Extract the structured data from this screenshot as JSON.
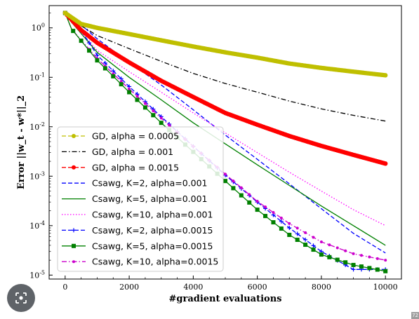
{
  "chart_data": {
    "type": "line",
    "title": "",
    "xlabel": "#gradient evaluations",
    "ylabel": "Error ||w_t - w*||_2",
    "xlim": [
      -500,
      10500
    ],
    "ylim_log10": [
      -5.08,
      0.45
    ],
    "yscale": "log",
    "x_ticks": [
      0,
      2000,
      4000,
      6000,
      8000,
      10000
    ],
    "x_tick_labels": [
      "0",
      "2000",
      "4000",
      "6000",
      "8000",
      "10000"
    ],
    "y_ticks": [
      1,
      0.1,
      0.01,
      0.001,
      0.0001,
      1e-05
    ],
    "y_tick_labels": [
      "10^0",
      "10^-1",
      "10^-2",
      "10^-3",
      "10^-4",
      "10^-5"
    ],
    "grid": false,
    "legend_position": "lower-left",
    "series": [
      {
        "name": "GD, alpha = 0.0005",
        "color": "#bfbf00",
        "style": "dashed",
        "marker": "circle-dense",
        "x": [
          0,
          500,
          1000,
          2000,
          3000,
          4000,
          5000,
          6000,
          7000,
          8000,
          9000,
          10000
        ],
        "y": [
          2.0,
          1.2,
          1.0,
          0.75,
          0.56,
          0.42,
          0.32,
          0.25,
          0.19,
          0.155,
          0.13,
          0.11
        ]
      },
      {
        "name": "GD, alpha = 0.001",
        "color": "#000000",
        "style": "dashdot",
        "marker": "none",
        "x": [
          0,
          500,
          1000,
          2000,
          3000,
          4000,
          5000,
          6000,
          7000,
          8000,
          9000,
          10000
        ],
        "y": [
          2.0,
          1.1,
          0.7,
          0.38,
          0.21,
          0.12,
          0.075,
          0.05,
          0.033,
          0.023,
          0.017,
          0.013
        ]
      },
      {
        "name": "GD, alpha = 0.0015",
        "color": "#ff0000",
        "style": "dashed",
        "marker": "circle-dense",
        "x": [
          0,
          500,
          1000,
          2000,
          3000,
          4000,
          5000,
          6000,
          7000,
          8000,
          9000,
          10000
        ],
        "y": [
          2.0,
          0.9,
          0.5,
          0.2,
          0.085,
          0.04,
          0.019,
          0.011,
          0.0065,
          0.0041,
          0.0027,
          0.0018
        ]
      },
      {
        "name": "Csawg, K=2, alpha=0.001",
        "color": "#0000ff",
        "style": "dashed",
        "marker": "none",
        "x": [
          0,
          300,
          1000,
          2000,
          3000,
          4000,
          5000,
          6000,
          7000,
          8000,
          9000,
          10000
        ],
        "y": [
          2.0,
          1.5,
          0.6,
          0.2,
          0.07,
          0.022,
          0.0068,
          0.0022,
          0.0007,
          0.00022,
          7e-05,
          2.8e-05
        ]
      },
      {
        "name": "Csawg, K=5, alpha=0.001",
        "color": "#008000",
        "style": "solid",
        "marker": "none",
        "x": [
          0,
          200,
          1000,
          2000,
          3000,
          4000,
          5000,
          6000,
          7000,
          8000,
          9000,
          10000
        ],
        "y": [
          2.0,
          1.3,
          0.32,
          0.1,
          0.035,
          0.012,
          0.0045,
          0.0017,
          0.00065,
          0.00025,
          0.0001,
          4e-05
        ]
      },
      {
        "name": "Csawg, K=10, alpha=0.001",
        "color": "#ff00ff",
        "style": "dotted",
        "marker": "none",
        "x": [
          0,
          200,
          1000,
          2000,
          3000,
          4000,
          5000,
          6000,
          7000,
          8000,
          9000,
          10000
        ],
        "y": [
          2.0,
          1.3,
          0.35,
          0.13,
          0.05,
          0.019,
          0.0075,
          0.003,
          0.0012,
          0.0005,
          0.00021,
          0.0001
        ]
      },
      {
        "name": "Csawg, K=2, alpha=0.0015",
        "color": "#0000ff",
        "style": "dashed",
        "marker": "plus",
        "x": [
          0,
          300,
          1000,
          2000,
          3000,
          4000,
          5000,
          6000,
          7000,
          8000,
          9000,
          10000
        ],
        "y": [
          2.0,
          1.4,
          0.28,
          0.065,
          0.016,
          0.004,
          0.00105,
          0.0003,
          9e-05,
          3e-05,
          1.3e-05,
          1.3e-05
        ]
      },
      {
        "name": "Csawg, K=5, alpha=0.0015",
        "color": "#008000",
        "style": "solid",
        "marker": "square",
        "x": [
          0,
          200,
          1000,
          2000,
          3000,
          4000,
          5000,
          6000,
          7000,
          8000,
          9000,
          10000
        ],
        "y": [
          2.0,
          0.95,
          0.22,
          0.05,
          0.012,
          0.0031,
          0.0008,
          0.00021,
          6.5e-05,
          2.6e-05,
          1.6e-05,
          1.2e-05
        ]
      },
      {
        "name": "Csawg, K=10, alpha=0.0015",
        "color": "#cc00cc",
        "style": "dashdot",
        "marker": "circle",
        "x": [
          0,
          200,
          1000,
          2000,
          3000,
          4000,
          5000,
          6000,
          7000,
          8000,
          9000,
          10000
        ],
        "y": [
          2.0,
          0.95,
          0.24,
          0.058,
          0.015,
          0.004,
          0.0011,
          0.00031,
          0.00011,
          4.7e-05,
          2.7e-05,
          2e-05
        ]
      }
    ]
  },
  "corner_number": "72"
}
